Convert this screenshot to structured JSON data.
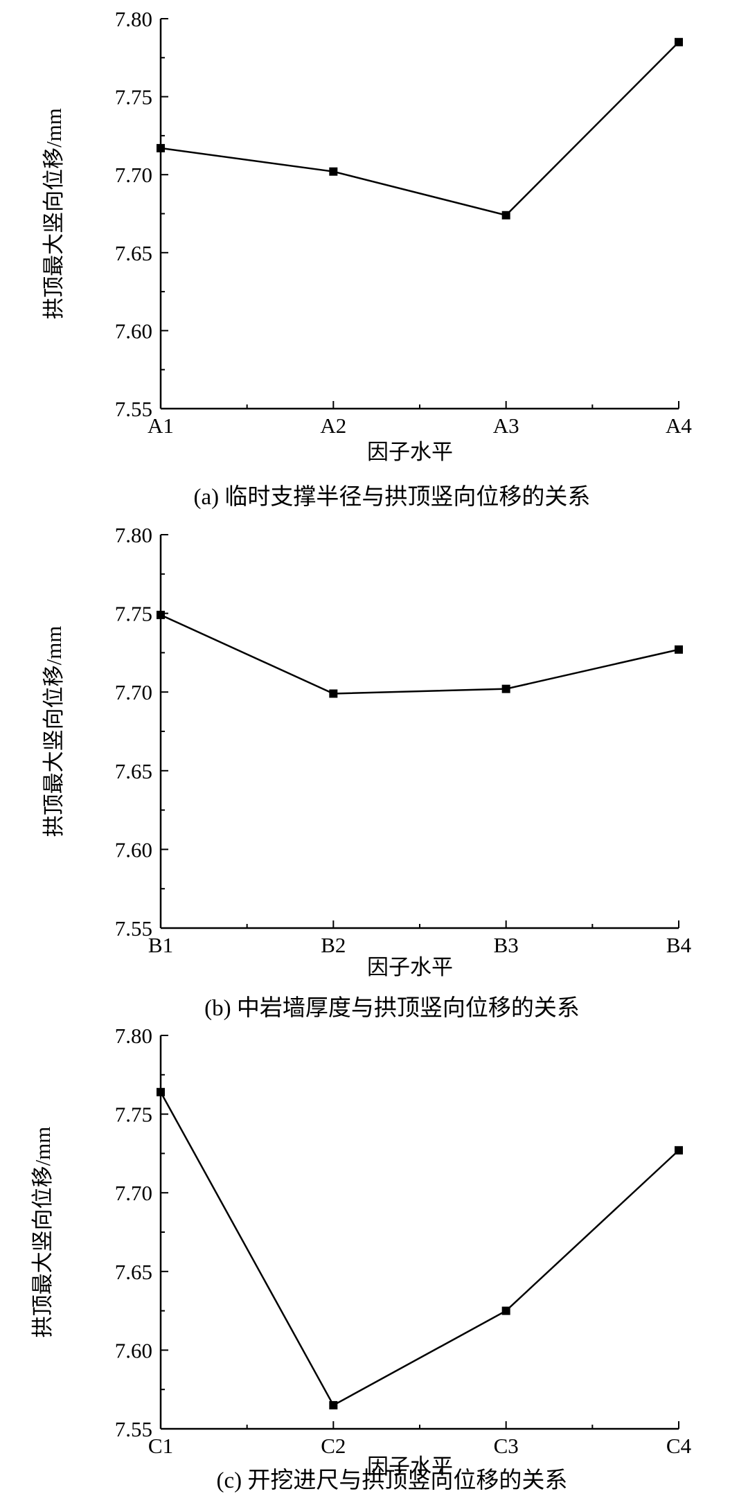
{
  "chart_data": [
    {
      "type": "line",
      "caption": "(a) 临时支撑半径与拱顶竖向位移的关系",
      "xlabel": "因子水平",
      "ylabel": "拱顶最大竖向位移/mm",
      "categories": [
        "A1",
        "A2",
        "A3",
        "A4"
      ],
      "values": [
        7.717,
        7.702,
        7.674,
        7.785
      ],
      "ylim": [
        7.55,
        7.8
      ],
      "yticks": [
        "7.55",
        "7.60",
        "7.65",
        "7.70",
        "7.75",
        "7.80"
      ],
      "grid": false,
      "marker": "square"
    },
    {
      "type": "line",
      "caption": "(b) 中岩墙厚度与拱顶竖向位移的关系",
      "xlabel": "因子水平",
      "ylabel": "拱顶最大竖向位移/mm",
      "categories": [
        "B1",
        "B2",
        "B3",
        "B4"
      ],
      "values": [
        7.749,
        7.699,
        7.702,
        7.727
      ],
      "ylim": [
        7.55,
        7.8
      ],
      "yticks": [
        "7.55",
        "7.60",
        "7.65",
        "7.70",
        "7.75",
        "7.80"
      ],
      "grid": false,
      "marker": "square"
    },
    {
      "type": "line",
      "caption": "(c) 开挖进尺与拱顶竖向位移的关系",
      "xlabel": "因子水平",
      "ylabel": "拱顶最大竖向位移/mm",
      "categories": [
        "C1",
        "C2",
        "C3",
        "C4"
      ],
      "values": [
        7.764,
        7.565,
        7.625,
        7.727
      ],
      "ylim": [
        7.55,
        7.8
      ],
      "yticks": [
        "7.55",
        "7.60",
        "7.65",
        "7.70",
        "7.75",
        "7.80"
      ],
      "grid": false,
      "marker": "square"
    }
  ]
}
